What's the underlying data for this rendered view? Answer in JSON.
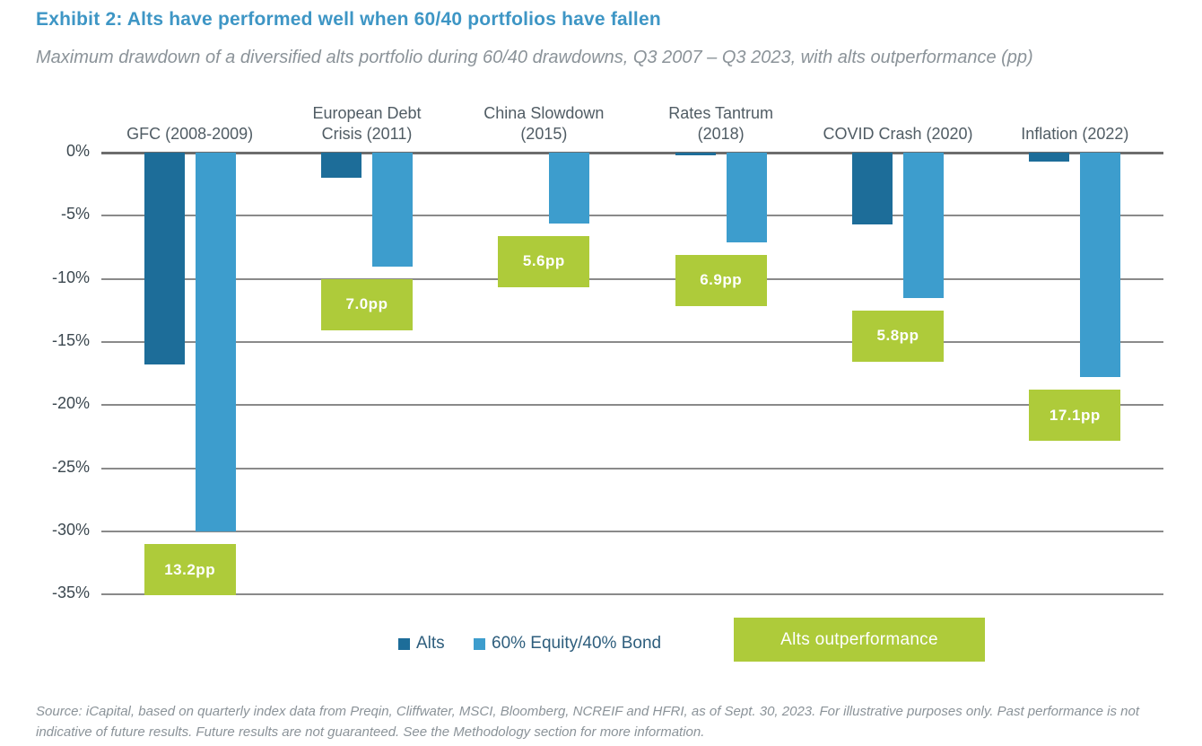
{
  "header": {
    "title": "Exhibit 2: Alts have performed well when 60/40 portfolios have fallen",
    "subtitle": "Maximum drawdown of a diversified alts portfolio during 60/40 drawdowns, Q3 2007 – Q3 2023, with alts outperformance (pp)"
  },
  "chart_data": {
    "type": "bar",
    "orientation": "vertical",
    "title": "Exhibit 2: Alts have performed well when 60/40 portfolios have fallen",
    "subtitle": "Maximum drawdown of a diversified alts portfolio during 60/40 drawdowns, Q3 2007 – Q3 2023, with alts outperformance (pp)",
    "categories": [
      "GFC (2008-2009)",
      "European Debt\nCrisis (2011)",
      "China Slowdown\n(2015)",
      "Rates Tantrum\n(2018)",
      "COVID Crash (2020)",
      "Inflation (2022)"
    ],
    "series": [
      {
        "name": "Alts",
        "color": "#1d6d99",
        "values": [
          -16.8,
          -2.0,
          0.0,
          -0.2,
          -5.7,
          -0.7
        ]
      },
      {
        "name": "60% Equity/40% Bond",
        "color": "#3d9dcd",
        "values": [
          -30.0,
          -9.0,
          -5.6,
          -7.1,
          -11.5,
          -17.8
        ]
      }
    ],
    "outperformance_labels": [
      "13.2pp",
      "7.0pp",
      "5.6pp",
      "6.9pp",
      "5.8pp",
      "17.1pp"
    ],
    "outperformance_color": "#aecb3a",
    "legend_badge": "Alts outperformance",
    "y_axis": {
      "unit": "%",
      "min": -35,
      "max": 0,
      "tick_step": 5,
      "ticks": [
        "0%",
        "-5%",
        "-10%",
        "-15%",
        "-20%",
        "-25%",
        "-30%",
        "-35%"
      ]
    },
    "grid": true,
    "legend_position": "bottom"
  },
  "colors": {
    "title_blue": "#3e96c5",
    "alts_bar": "#1d6d99",
    "blend_bar": "#3d9dcd",
    "outperformance_green": "#aecb3a",
    "gridline_gray": "#8a8a8a",
    "axis_text": "#3c4850",
    "category_text": "#505c64",
    "legend_text": "#2e5e7d",
    "note_gray": "#8b9399"
  },
  "footer": {
    "source": "Source: iCapital, based on quarterly index data from Preqin, Cliffwater, MSCI, Bloomberg, NCREIF and HFRI, as of Sept. 30, 2023. For illustrative purposes only. Past performance is not indicative of future results. Future results are not guaranteed. See the Methodology section for more information."
  }
}
